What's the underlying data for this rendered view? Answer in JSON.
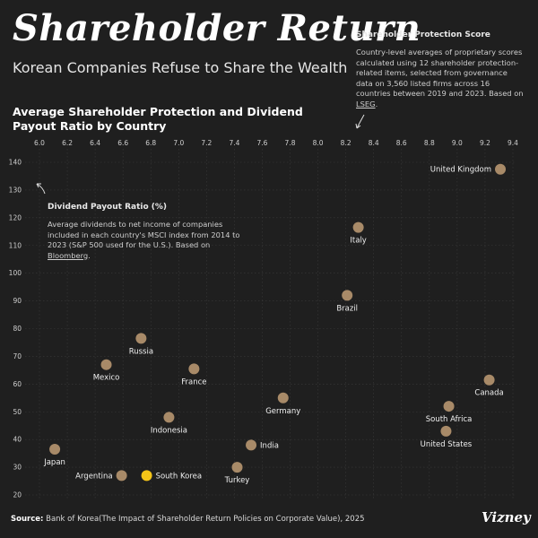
{
  "header": {
    "title": "Shareholder Return",
    "subtitle": "Korean Companies Refuse to Share the Wealth"
  },
  "notes": {
    "x_note_title": "Shareholder Protection Score",
    "x_note_text": "Country-level averages of proprietary scores calculated using 12 shareholder protection-related items, selected from governance data on 3,560 listed firms across 16 countries between 2019 and 2023. Based on",
    "x_note_link": "LSEG",
    "x_note_end": ".",
    "y_note_title": "Dividend Payout Ratio (%)",
    "y_note_text": "Average dividends to net income of companies included in each country's MSCI index from 2014 to 2023 (S&P 500 used for the U.S.). Based on",
    "y_note_link": "Bloomberg",
    "y_note_end": "."
  },
  "footer": {
    "source_label": "Source:",
    "source_text": "Bank of Korea(The Impact of Shareholder Return Policies on Corporate Value), 2025",
    "brand": "Vizney"
  },
  "colors": {
    "background": "#1f1f1f",
    "point": "#a88a68",
    "highlight": "#f5c518",
    "grid": "#3a3a3a",
    "tick": "#cfcfcf"
  },
  "chart_data": {
    "type": "scatter",
    "title": "Average Shareholder Protection and Dividend Payout Ratio by Country",
    "xlabel": "Shareholder Protection Score",
    "ylabel": "Dividend Payout Ratio (%)",
    "xlim": [
      6.0,
      9.4
    ],
    "ylim": [
      20,
      140
    ],
    "x_ticks": [
      "6.0",
      "6.2",
      "6.4",
      "6.6",
      "6.8",
      "7.0",
      "7.2",
      "7.4",
      "7.6",
      "7.8",
      "8.0",
      "8.2",
      "8.4",
      "8.6",
      "8.8",
      "9.0",
      "9.2",
      "9.4"
    ],
    "y_ticks": [
      "20",
      "30",
      "40",
      "50",
      "60",
      "70",
      "80",
      "90",
      "100",
      "110",
      "120",
      "130",
      "140"
    ],
    "points": [
      {
        "country": "United Kingdom",
        "x": 9.31,
        "y": 137.5,
        "label_pos": "left"
      },
      {
        "country": "Italy",
        "x": 8.29,
        "y": 116.5,
        "label_pos": "below"
      },
      {
        "country": "Brazil",
        "x": 8.21,
        "y": 92,
        "label_pos": "below"
      },
      {
        "country": "Russia",
        "x": 6.73,
        "y": 76.5,
        "label_pos": "below"
      },
      {
        "country": "Mexico",
        "x": 6.48,
        "y": 67,
        "label_pos": "below"
      },
      {
        "country": "France",
        "x": 7.11,
        "y": 65.5,
        "label_pos": "below"
      },
      {
        "country": "Canada",
        "x": 9.23,
        "y": 61.5,
        "label_pos": "below"
      },
      {
        "country": "Germany",
        "x": 7.75,
        "y": 55,
        "label_pos": "below"
      },
      {
        "country": "South Africa",
        "x": 8.94,
        "y": 52,
        "label_pos": "below"
      },
      {
        "country": "Indonesia",
        "x": 6.93,
        "y": 48,
        "label_pos": "below"
      },
      {
        "country": "United States",
        "x": 8.92,
        "y": 43,
        "label_pos": "below"
      },
      {
        "country": "India",
        "x": 7.52,
        "y": 38,
        "label_pos": "right"
      },
      {
        "country": "Japan",
        "x": 6.11,
        "y": 36.5,
        "label_pos": "below"
      },
      {
        "country": "Turkey",
        "x": 7.42,
        "y": 30,
        "label_pos": "below"
      },
      {
        "country": "Argentina",
        "x": 6.59,
        "y": 27,
        "label_pos": "left"
      },
      {
        "country": "South Korea",
        "x": 6.77,
        "y": 27,
        "label_pos": "right",
        "highlight": true
      }
    ]
  }
}
